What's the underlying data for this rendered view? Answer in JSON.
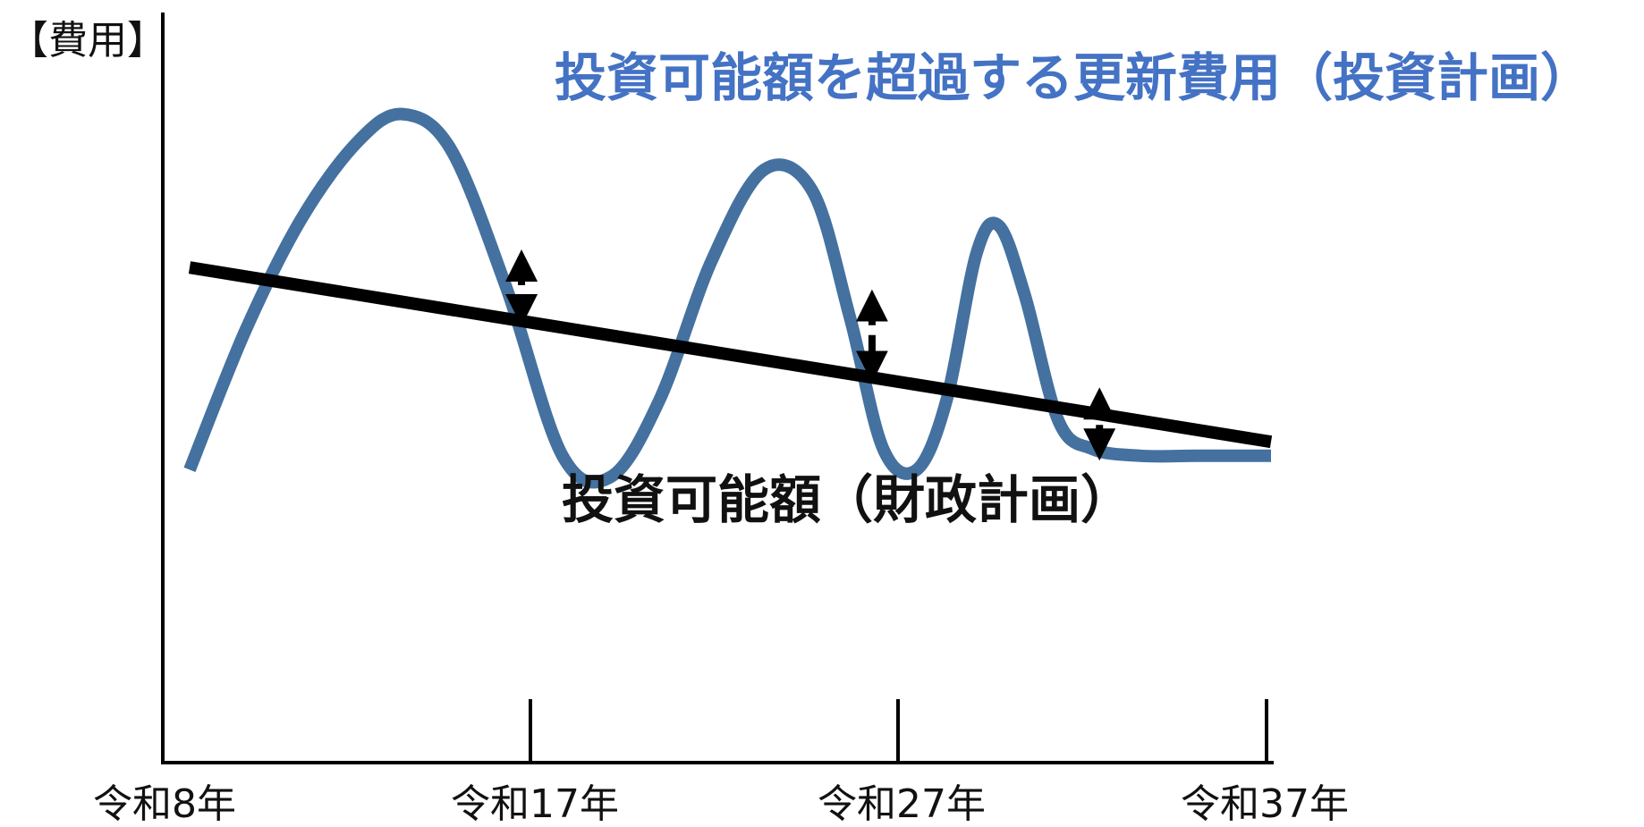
{
  "chart_data": {
    "type": "line",
    "ylabel": "【費用】",
    "x_ticks": [
      "令和8年",
      "令和17年",
      "令和27年",
      "令和37年"
    ],
    "xlim": [
      8,
      37
    ],
    "series": [
      {
        "name": "投資可能額を超過する更新費用（投資計画）",
        "color": "#44719f",
        "points": [
          [
            8,
            0.42
          ],
          [
            9.5,
            0.62
          ],
          [
            11,
            0.78
          ],
          [
            12.5,
            0.89
          ],
          [
            13.7,
            0.93
          ],
          [
            15,
            0.88
          ],
          [
            16.5,
            0.68
          ],
          [
            18,
            0.44
          ],
          [
            19.3,
            0.41
          ],
          [
            20.6,
            0.52
          ],
          [
            22,
            0.72
          ],
          [
            23.4,
            0.85
          ],
          [
            24.7,
            0.82
          ],
          [
            25.7,
            0.64
          ],
          [
            26.6,
            0.45
          ],
          [
            27.5,
            0.42
          ],
          [
            28.3,
            0.52
          ],
          [
            29.1,
            0.73
          ],
          [
            29.7,
            0.77
          ],
          [
            30.4,
            0.67
          ],
          [
            31.3,
            0.49
          ],
          [
            32.2,
            0.45
          ],
          [
            33.5,
            0.44
          ],
          [
            35,
            0.44
          ],
          [
            37,
            0.44
          ]
        ]
      },
      {
        "name": "投資可能額（財政計画）",
        "color": "#000000",
        "points": [
          [
            8,
            0.71
          ],
          [
            37,
            0.46
          ]
        ]
      }
    ],
    "arrows_x": [
      16.9,
      26.3,
      32.4
    ]
  }
}
